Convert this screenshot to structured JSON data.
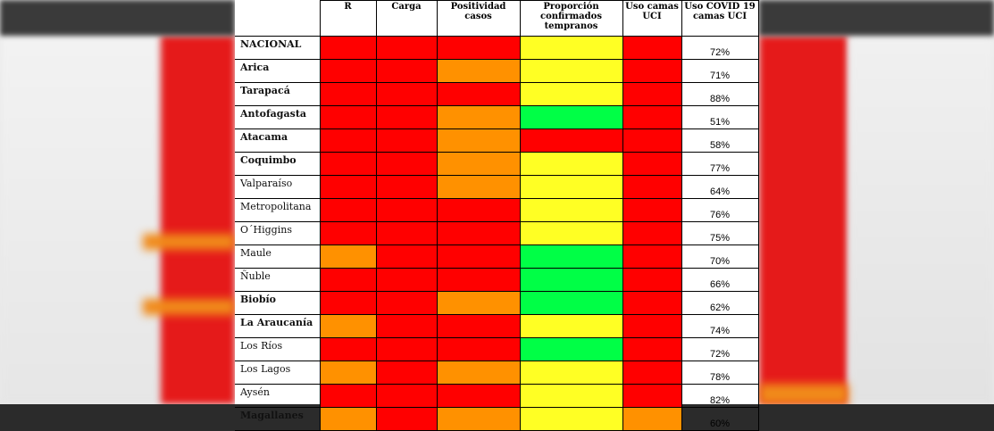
{
  "colors": {
    "red": "#ff0000",
    "orange": "#ff9100",
    "yellow": "#ffff24",
    "green": "#00ff46"
  },
  "headers": {
    "r": "R",
    "carga": "Carga",
    "positividad": "Positividad casos",
    "proporcion": "Proporción confirmados tempranos",
    "uso_uci": "Uso camas UCI",
    "uso_covid": "Uso COVID 19 camas UCI"
  },
  "rows": [
    {
      "name": "NACIONAL",
      "bold": true,
      "r": "red",
      "carga": "red",
      "positividad": "red",
      "proporcion": "yellow",
      "uci": "red",
      "pct": "72%"
    },
    {
      "name": "Arica",
      "bold": true,
      "r": "red",
      "carga": "red",
      "positividad": "orange",
      "proporcion": "yellow",
      "uci": "red",
      "pct": "71%"
    },
    {
      "name": "Tarapacá",
      "bold": true,
      "r": "red",
      "carga": "red",
      "positividad": "red",
      "proporcion": "yellow",
      "uci": "red",
      "pct": "88%"
    },
    {
      "name": "Antofagasta",
      "bold": true,
      "r": "red",
      "carga": "red",
      "positividad": "orange",
      "proporcion": "green",
      "uci": "red",
      "pct": "51%"
    },
    {
      "name": "Atacama",
      "bold": true,
      "r": "red",
      "carga": "red",
      "positividad": "orange",
      "proporcion": "red",
      "uci": "red",
      "pct": "58%"
    },
    {
      "name": "Coquimbo",
      "bold": true,
      "r": "red",
      "carga": "red",
      "positividad": "orange",
      "proporcion": "yellow",
      "uci": "red",
      "pct": "77%"
    },
    {
      "name": "Valparaíso",
      "bold": false,
      "r": "red",
      "carga": "red",
      "positividad": "orange",
      "proporcion": "yellow",
      "uci": "red",
      "pct": "64%"
    },
    {
      "name": "Metropolitana",
      "bold": false,
      "r": "red",
      "carga": "red",
      "positividad": "red",
      "proporcion": "yellow",
      "uci": "red",
      "pct": "76%"
    },
    {
      "name": "O´Higgins",
      "bold": false,
      "r": "red",
      "carga": "red",
      "positividad": "red",
      "proporcion": "yellow",
      "uci": "red",
      "pct": "75%"
    },
    {
      "name": "Maule",
      "bold": false,
      "r": "orange",
      "carga": "red",
      "positividad": "red",
      "proporcion": "green",
      "uci": "red",
      "pct": "70%"
    },
    {
      "name": "Ñuble",
      "bold": false,
      "r": "red",
      "carga": "red",
      "positividad": "red",
      "proporcion": "green",
      "uci": "red",
      "pct": "66%"
    },
    {
      "name": "Biobío",
      "bold": true,
      "r": "red",
      "carga": "red",
      "positividad": "orange",
      "proporcion": "green",
      "uci": "red",
      "pct": "62%"
    },
    {
      "name": "La Araucanía",
      "bold": true,
      "r": "orange",
      "carga": "red",
      "positividad": "red",
      "proporcion": "yellow",
      "uci": "red",
      "pct": "74%"
    },
    {
      "name": "Los Ríos",
      "bold": false,
      "r": "red",
      "carga": "red",
      "positividad": "red",
      "proporcion": "green",
      "uci": "red",
      "pct": "72%"
    },
    {
      "name": "Los Lagos",
      "bold": false,
      "r": "orange",
      "carga": "red",
      "positividad": "orange",
      "proporcion": "yellow",
      "uci": "red",
      "pct": "78%"
    },
    {
      "name": "Aysén",
      "bold": false,
      "r": "red",
      "carga": "red",
      "positividad": "red",
      "proporcion": "yellow",
      "uci": "red",
      "pct": "82%"
    },
    {
      "name": "Magallanes",
      "bold": true,
      "r": "orange",
      "carga": "red",
      "positividad": "orange",
      "proporcion": "yellow",
      "uci": "orange",
      "pct": "60%"
    }
  ]
}
